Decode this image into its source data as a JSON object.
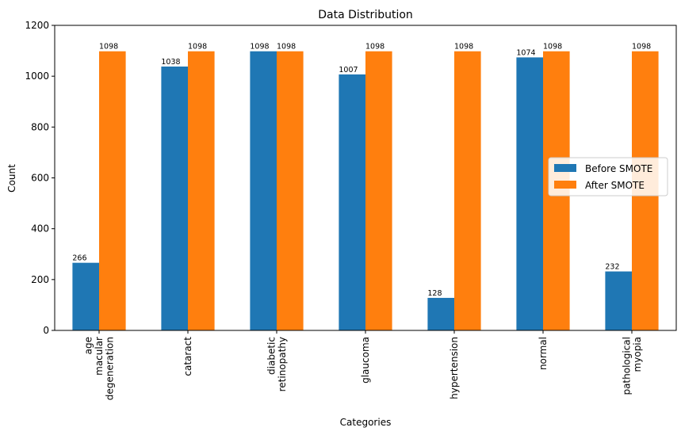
{
  "chart_data": {
    "type": "bar",
    "title": "Data Distribution",
    "xlabel": "Categories",
    "ylabel": "Count",
    "ylim": [
      0,
      1200
    ],
    "yticks": [
      "0",
      "200",
      "400",
      "600",
      "800",
      "1000",
      "1200"
    ],
    "categories": [
      "age\nmacular\ndegeneration",
      "cataract",
      "diabetic\nretinopathy",
      "glaucoma",
      "hypertension",
      "normal",
      "pathological\nmyopia"
    ],
    "series": [
      {
        "name": "Before SMOTE",
        "color": "#1f77b4",
        "values": [
          266,
          1038,
          1098,
          1007,
          128,
          1074,
          232
        ]
      },
      {
        "name": "After SMOTE",
        "color": "#ff7f0e",
        "values": [
          1098,
          1098,
          1098,
          1098,
          1098,
          1098,
          1098
        ]
      }
    ],
    "legend_position": "center-right",
    "grid": false
  }
}
